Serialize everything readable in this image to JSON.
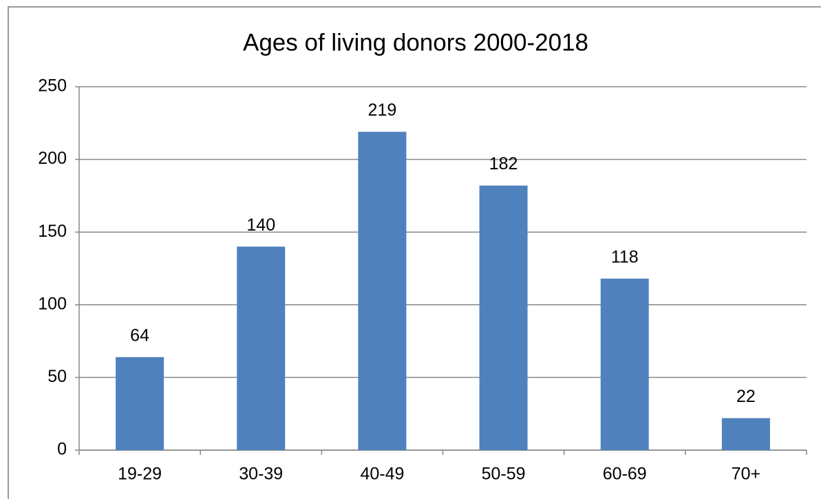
{
  "chart_data": {
    "type": "bar",
    "title": "Ages of living donors 2000-2018",
    "categories": [
      "19-29",
      "30-39",
      "40-49",
      "50-59",
      "60-69",
      "70+"
    ],
    "values": [
      64,
      140,
      219,
      182,
      118,
      22
    ],
    "color": "#4f81bd",
    "ylim": [
      0,
      250
    ],
    "yticks": [
      0,
      50,
      100,
      150,
      200,
      250
    ],
    "grid": true
  }
}
